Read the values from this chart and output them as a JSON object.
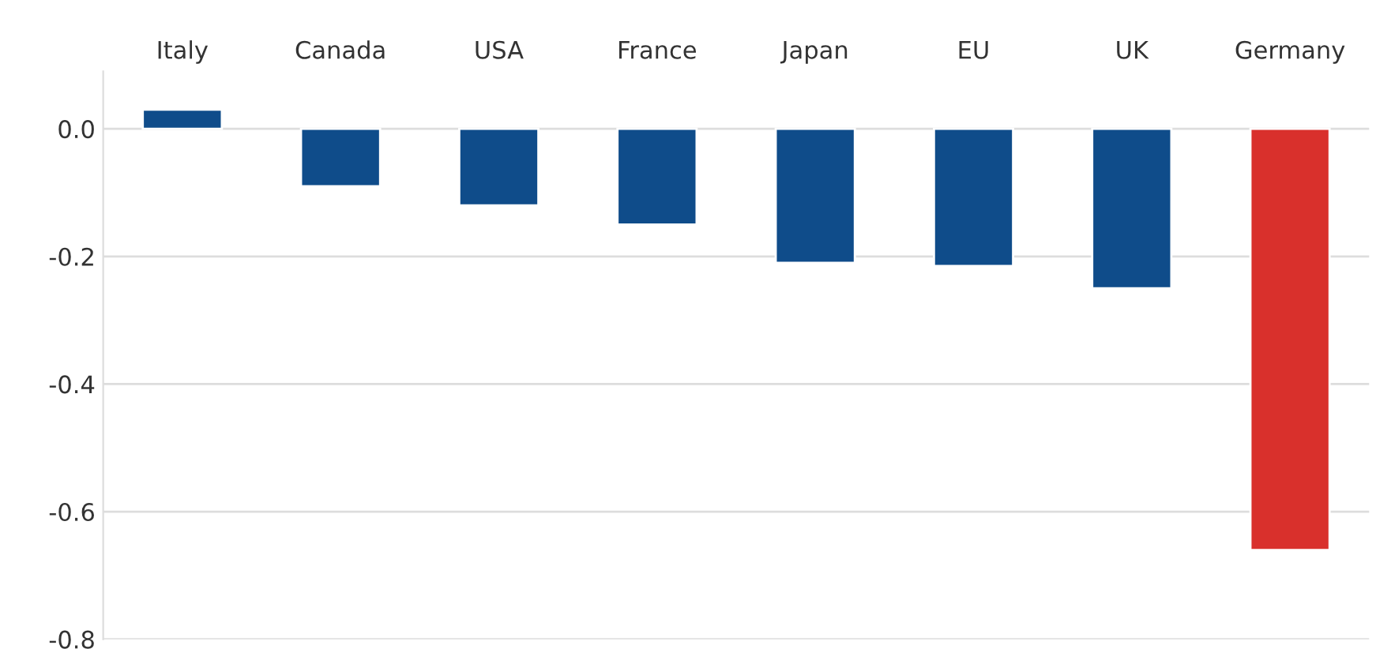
{
  "chart_data": {
    "type": "bar",
    "categories": [
      "Italy",
      "Canada",
      "USA",
      "France",
      "Japan",
      "EU",
      "UK",
      "Germany"
    ],
    "values": [
      0.03,
      -0.09,
      -0.12,
      -0.15,
      -0.21,
      -0.215,
      -0.25,
      -0.66
    ],
    "colors": [
      "#0f4c8a",
      "#0f4c8a",
      "#0f4c8a",
      "#0f4c8a",
      "#0f4c8a",
      "#0f4c8a",
      "#0f4c8a",
      "#d9302c"
    ],
    "ylim": [
      -0.8,
      0.09
    ],
    "yticks": [
      {
        "value": 0,
        "label": "0.0"
      },
      -0.2,
      -0.4,
      -0.6,
      -0.8
    ],
    "grid": "y",
    "legend": false
  }
}
